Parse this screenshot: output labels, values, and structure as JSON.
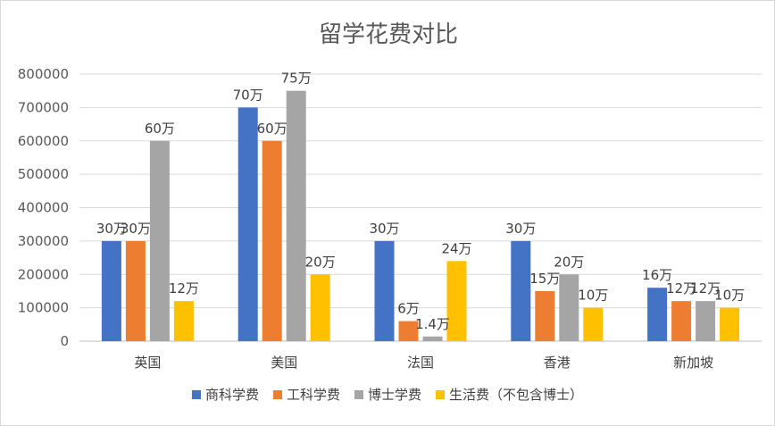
{
  "chart_data": {
    "type": "bar",
    "title": "留学花费对比",
    "xlabel": "",
    "ylabel": "",
    "ylim": [
      0,
      800000
    ],
    "ytick_step": 100000,
    "ytick_labels": [
      "0",
      "100000",
      "200000",
      "300000",
      "400000",
      "500000",
      "600000",
      "700000",
      "800000"
    ],
    "grid": true,
    "legend_position": "bottom",
    "categories": [
      "英国",
      "美国",
      "法国",
      "香港",
      "新加坡"
    ],
    "series": [
      {
        "name": "商科学费",
        "color": "#4472c4",
        "values": [
          300000,
          700000,
          300000,
          300000,
          160000
        ],
        "labels": [
          "30万",
          "70万",
          "30万",
          "30万",
          "16万"
        ]
      },
      {
        "name": "工科学费",
        "color": "#ed7d31",
        "values": [
          300000,
          600000,
          60000,
          150000,
          120000
        ],
        "labels": [
          "30万",
          "60万",
          "6万",
          "15万",
          "12万"
        ]
      },
      {
        "name": "博士学费",
        "color": "#a5a5a5",
        "values": [
          600000,
          750000,
          14000,
          200000,
          120000
        ],
        "labels": [
          "60万",
          "75万",
          "1.4万",
          "20万",
          "12万"
        ]
      },
      {
        "name": "生活费（不包含博士）",
        "color": "#ffc000",
        "values": [
          120000,
          200000,
          240000,
          100000,
          100000
        ],
        "labels": [
          "12万",
          "20万",
          "24万",
          "10万",
          "10万"
        ]
      }
    ]
  }
}
